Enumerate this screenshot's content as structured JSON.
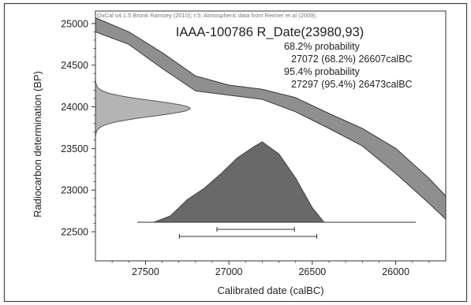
{
  "chart_data": {
    "type": "area",
    "credit": "OxCal v4.1.5 Bronk Ramsey (2010); r:5; Atmospheric data from Reimer et al (2009);",
    "title": "IAAA-100786 R_Date(23980,93)",
    "xlabel": "Calibrated date (calBC)",
    "ylabel": "Radiocarbon determination (BP)",
    "x_reversed": true,
    "xlim": [
      27800,
      25700
    ],
    "ylim": [
      22150,
      25150
    ],
    "x_ticks": [
      27500,
      27000,
      26500,
      26000
    ],
    "y_ticks": [
      25000,
      24500,
      24000,
      23500,
      23000,
      22500
    ],
    "ranges_text": [
      {
        "label": "68.2% probability",
        "value": "27072 (68.2%) 26607calBC"
      },
      {
        "label": "95.4% probability",
        "value": "27297 (95.4%) 26473calBC"
      }
    ],
    "ranges": [
      {
        "level": "68.2%",
        "from": 27072,
        "to": 26607
      },
      {
        "level": "95.4%",
        "from": 27297,
        "to": 26473
      }
    ],
    "calibration_curve": {
      "x": [
        27800,
        27600,
        27400,
        27200,
        27000,
        26800,
        26600,
        26400,
        26200,
        26000,
        25800,
        25700
      ],
      "upper": [
        25070,
        24900,
        24650,
        24370,
        24260,
        24210,
        24110,
        23920,
        23740,
        23500,
        23140,
        22930
      ],
      "lower": [
        24900,
        24750,
        24460,
        24190,
        24140,
        24090,
        23940,
        23740,
        23530,
        23200,
        22840,
        22650
      ]
    },
    "radiocarbon_distribution": {
      "mean": 23980,
      "sd": 93
    },
    "calibrated_distribution": {
      "x": [
        27450,
        27350,
        27250,
        27150,
        27050,
        26950,
        26850,
        26800,
        26700,
        26600,
        26500,
        26430
      ],
      "density": [
        0,
        0.08,
        0.28,
        0.42,
        0.6,
        0.8,
        0.94,
        1.0,
        0.85,
        0.55,
        0.18,
        0
      ]
    }
  },
  "colors": {
    "curve_fill": "#8f8f8f",
    "curve_stroke": "#3a3a3a",
    "radiocarbon_fill": "#b4b4b4",
    "calibrated_fill": "#696969",
    "axis": "#333333"
  }
}
